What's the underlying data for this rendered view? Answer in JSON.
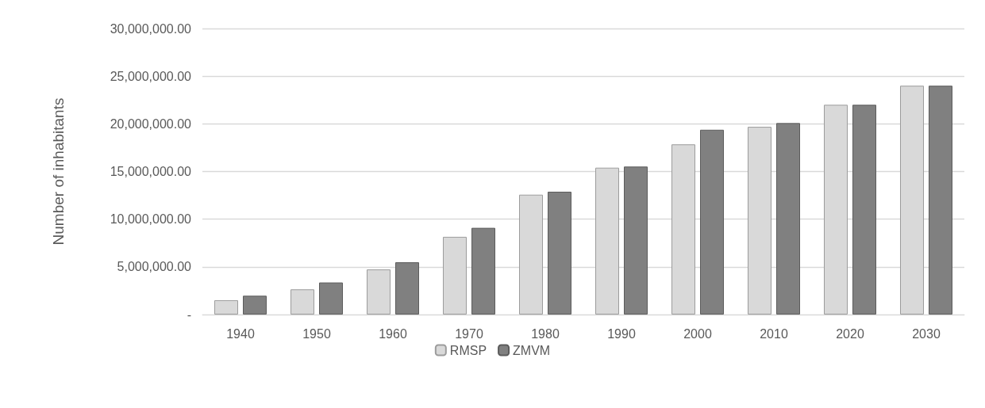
{
  "chart_data": {
    "type": "bar",
    "ylabel": "Number of inhabitants",
    "categories": [
      "1940",
      "1950",
      "1960",
      "1970",
      "1980",
      "1990",
      "2000",
      "2010",
      "2020",
      "2030"
    ],
    "series": [
      {
        "name": "RMSP",
        "color": "#d9d9d9",
        "values": [
          1500000,
          2640000,
          4730000,
          8150000,
          12570000,
          15400000,
          17850000,
          19690000,
          22000000,
          24000000
        ]
      },
      {
        "name": "ZMVM",
        "color": "#808080",
        "values": [
          1970000,
          3360000,
          5480000,
          9090000,
          12880000,
          15520000,
          19380000,
          20080000,
          22000000,
          24000000
        ]
      }
    ],
    "ylim": [
      0,
      30000000
    ],
    "yticks": [
      {
        "value": 0,
        "label": "-"
      },
      {
        "value": 5000000,
        "label": "5,000,000.00"
      },
      {
        "value": 10000000,
        "label": "10,000,000.00"
      },
      {
        "value": 15000000,
        "label": "15,000,000.00"
      },
      {
        "value": 20000000,
        "label": "20,000,000.00"
      },
      {
        "value": 25000000,
        "label": "25,000,000.00"
      },
      {
        "value": 30000000,
        "label": "30,000,000.00"
      }
    ],
    "grid": "y",
    "legend": "bottom"
  }
}
